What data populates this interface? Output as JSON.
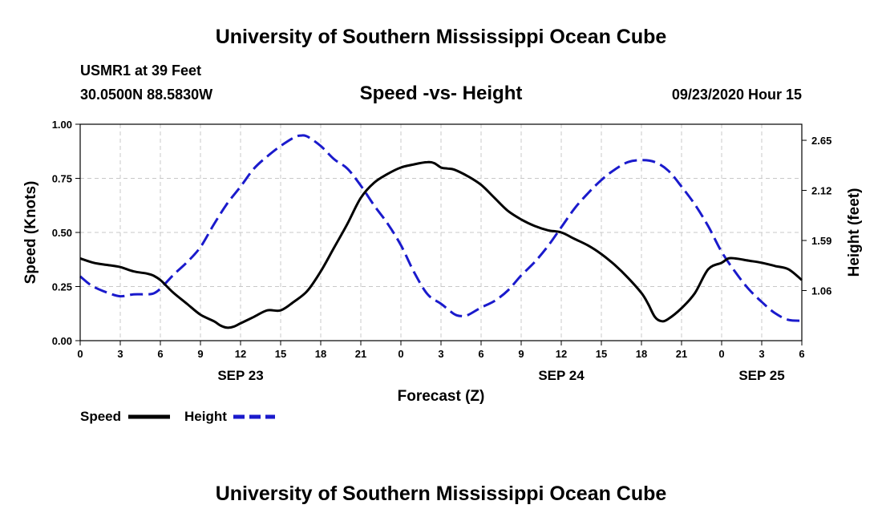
{
  "header": {
    "title": "University of Southern Mississippi Ocean Cube",
    "station": "USMR1 at 39 Feet",
    "coords": "30.0500N 88.5830W",
    "datetime": "09/23/2020 Hour 15"
  },
  "footer": {
    "title": "University of Southern Mississippi Ocean Cube"
  },
  "colors": {
    "speed": "#000000",
    "height": "#1a1acc",
    "grid": "#c8c8c8"
  },
  "chart_data": {
    "type": "line",
    "title": "Speed -vs- Height",
    "xlabel": "Forecast (Z)",
    "ylabel_left": "Speed (Knots)",
    "ylabel_right": "Height (feet)",
    "x_range_hours": [
      0,
      54
    ],
    "x_ticks": [
      {
        "hour": 0,
        "label": "0"
      },
      {
        "hour": 3,
        "label": "3"
      },
      {
        "hour": 6,
        "label": "6"
      },
      {
        "hour": 9,
        "label": "9"
      },
      {
        "hour": 12,
        "label": "12"
      },
      {
        "hour": 15,
        "label": "15"
      },
      {
        "hour": 18,
        "label": "18"
      },
      {
        "hour": 21,
        "label": "21"
      },
      {
        "hour": 24,
        "label": "0"
      },
      {
        "hour": 27,
        "label": "3"
      },
      {
        "hour": 30,
        "label": "6"
      },
      {
        "hour": 33,
        "label": "9"
      },
      {
        "hour": 36,
        "label": "12"
      },
      {
        "hour": 39,
        "label": "15"
      },
      {
        "hour": 42,
        "label": "18"
      },
      {
        "hour": 45,
        "label": "21"
      },
      {
        "hour": 48,
        "label": "0"
      },
      {
        "hour": 51,
        "label": "3"
      },
      {
        "hour": 54,
        "label": "6"
      }
    ],
    "date_labels": [
      {
        "hour": 12,
        "label": "SEP 23"
      },
      {
        "hour": 36,
        "label": "SEP 24"
      },
      {
        "hour": 51,
        "label": "SEP 25"
      }
    ],
    "left_axis": {
      "range": [
        0,
        1
      ],
      "ticks": [
        {
          "value": 0,
          "label": "0.00"
        },
        {
          "value": 0.25,
          "label": "0.25"
        },
        {
          "value": 0.5,
          "label": "0.50"
        },
        {
          "value": 0.75,
          "label": "0.75"
        },
        {
          "value": 1,
          "label": "1.00"
        }
      ]
    },
    "right_axis": {
      "range": [
        0.53,
        2.82
      ],
      "ticks": [
        {
          "value": 1.06,
          "label": "1.06"
        },
        {
          "value": 1.59,
          "label": "1.59"
        },
        {
          "value": 2.12,
          "label": "2.12"
        },
        {
          "value": 2.65,
          "label": "2.65"
        }
      ]
    },
    "series": [
      {
        "name": "Speed",
        "axis": "left",
        "style": "solid",
        "x": [
          0,
          1,
          2,
          3,
          4,
          5,
          5.5,
          6,
          6.5,
          7,
          8,
          9,
          10,
          10.5,
          11,
          11.5,
          12,
          13,
          14,
          15,
          16,
          17,
          18,
          19,
          20,
          21,
          22,
          23,
          24,
          25,
          26,
          26.5,
          27,
          27.5,
          28,
          29,
          30,
          31,
          32,
          33,
          34,
          35,
          36,
          37,
          38,
          39,
          40,
          41,
          42,
          42.5,
          43,
          43.5,
          44,
          45,
          46,
          47,
          48,
          48.5,
          49,
          50,
          51,
          52,
          53,
          54
        ],
        "values": [
          0.38,
          0.36,
          0.35,
          0.34,
          0.32,
          0.31,
          0.3,
          0.28,
          0.25,
          0.22,
          0.17,
          0.12,
          0.09,
          0.07,
          0.06,
          0.065,
          0.08,
          0.11,
          0.14,
          0.14,
          0.18,
          0.23,
          0.32,
          0.43,
          0.54,
          0.66,
          0.73,
          0.77,
          0.8,
          0.815,
          0.825,
          0.82,
          0.8,
          0.795,
          0.79,
          0.76,
          0.72,
          0.66,
          0.6,
          0.56,
          0.53,
          0.51,
          0.5,
          0.47,
          0.44,
          0.4,
          0.35,
          0.29,
          0.22,
          0.17,
          0.11,
          0.09,
          0.1,
          0.15,
          0.22,
          0.33,
          0.36,
          0.38,
          0.38,
          0.37,
          0.36,
          0.345,
          0.33,
          0.28
        ]
      },
      {
        "name": "Height",
        "axis": "right",
        "style": "dashed",
        "x": [
          0,
          0.5,
          1,
          2,
          3,
          4,
          5,
          5.5,
          6,
          7,
          8,
          9,
          10,
          11,
          12,
          13,
          14,
          15,
          16,
          16.5,
          17,
          18,
          19,
          20,
          21,
          22,
          23,
          24,
          25,
          26,
          27,
          28,
          28.5,
          29,
          30,
          31,
          32,
          33,
          34,
          35,
          36,
          37,
          38,
          39,
          40,
          41,
          42,
          43,
          44,
          45,
          46,
          47,
          48,
          49,
          50,
          51,
          52,
          53,
          54
        ],
        "values": [
          1.21,
          1.15,
          1.1,
          1.04,
          1.0,
          1.02,
          1.02,
          1.03,
          1.08,
          1.23,
          1.36,
          1.52,
          1.76,
          1.98,
          2.16,
          2.35,
          2.48,
          2.59,
          2.68,
          2.7,
          2.69,
          2.59,
          2.45,
          2.35,
          2.17,
          1.96,
          1.77,
          1.54,
          1.25,
          1.02,
          0.92,
          0.81,
          0.79,
          0.8,
          0.88,
          0.95,
          1.06,
          1.22,
          1.36,
          1.53,
          1.73,
          1.93,
          2.09,
          2.23,
          2.34,
          2.42,
          2.44,
          2.42,
          2.33,
          2.16,
          1.97,
          1.74,
          1.47,
          1.26,
          1.08,
          0.94,
          0.82,
          0.75,
          0.74
        ]
      }
    ],
    "legend": [
      {
        "name": "Speed",
        "label": "Speed"
      },
      {
        "name": "Height",
        "label": "Height"
      }
    ]
  }
}
